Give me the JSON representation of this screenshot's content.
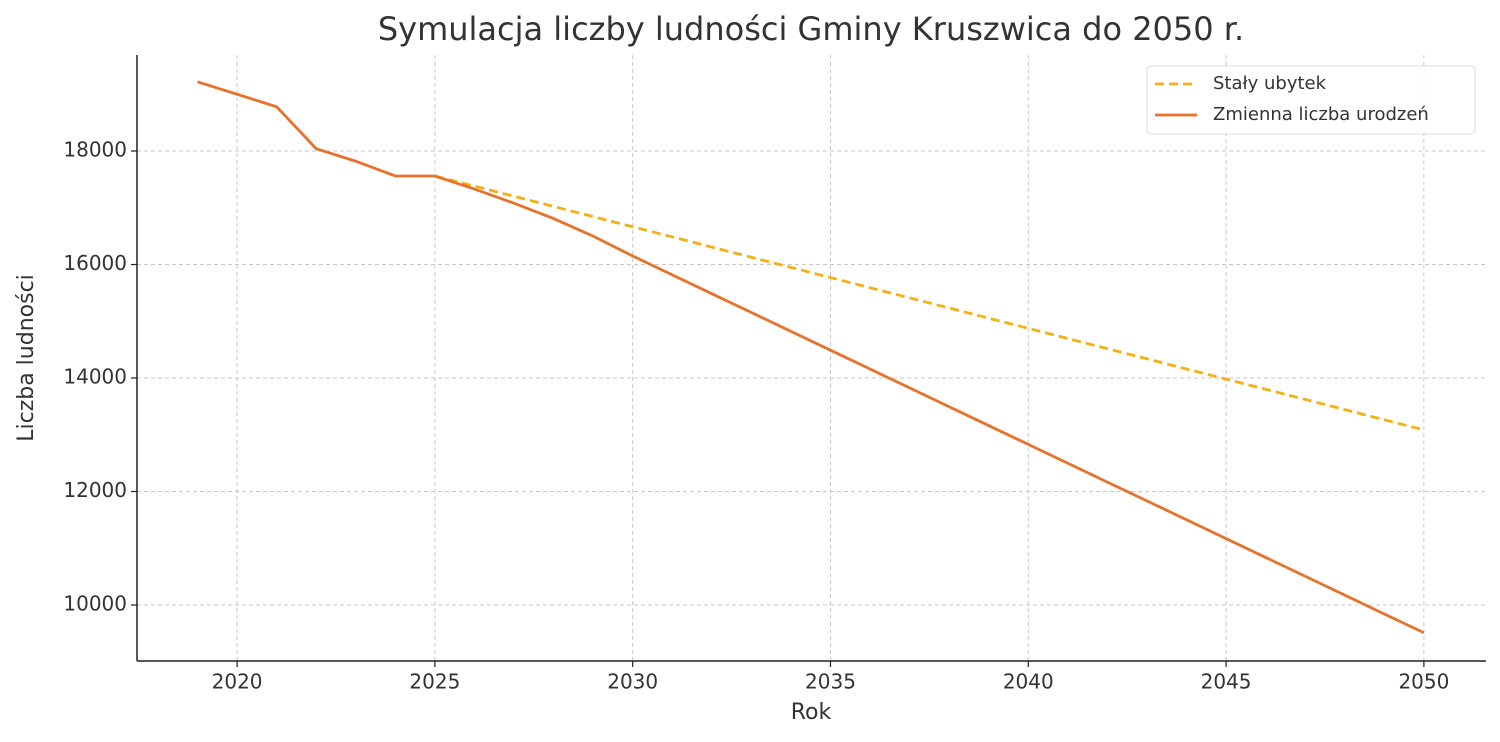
{
  "chart_data": {
    "type": "line",
    "title": "Symulacja liczby ludności Gminy Kruszwica do 2050 r.",
    "x_label": "Rok",
    "y_label": "Liczba ludności",
    "x": [
      2019,
      2020,
      2021,
      2022,
      2023,
      2024,
      2025,
      2026,
      2027,
      2028,
      2029,
      2030,
      2031,
      2032,
      2033,
      2034,
      2035,
      2036,
      2037,
      2038,
      2039,
      2040,
      2041,
      2042,
      2043,
      2044,
      2045,
      2046,
      2047,
      2048,
      2049,
      2050
    ],
    "series": [
      {
        "name": "Stały ubytek",
        "color": "#f5b015",
        "dash": true,
        "values": [
          null,
          null,
          null,
          null,
          null,
          null,
          17560,
          17381,
          17202,
          17023,
          16844,
          16665,
          16486,
          16307,
          16128,
          15949,
          15770,
          15591,
          15412,
          15233,
          15054,
          14875,
          14696,
          14517,
          14338,
          14159,
          13980,
          13801,
          13622,
          13443,
          13264,
          13085
        ]
      },
      {
        "name": "Zmienna liczba urodzeń",
        "color": "#e8722c",
        "dash": false,
        "values": [
          19220,
          19000,
          18780,
          18040,
          17820,
          17560,
          17560,
          17330,
          17080,
          16810,
          16500,
          16150,
          15818,
          15486,
          15154,
          14822,
          14490,
          14158,
          13826,
          13494,
          13162,
          12830,
          12498,
          12166,
          11834,
          11502,
          11170,
          10838,
          10506,
          10174,
          9842,
          9510
        ]
      }
    ],
    "xlim": [
      2017.47,
      2051.57
    ],
    "xticks": [
      2020,
      2025,
      2030,
      2035,
      2040,
      2045,
      2050
    ],
    "ylim": [
      9013,
      19692
    ],
    "yticks": [
      10000,
      12000,
      14000,
      16000,
      18000
    ],
    "grid": true,
    "legend": "upper right"
  }
}
